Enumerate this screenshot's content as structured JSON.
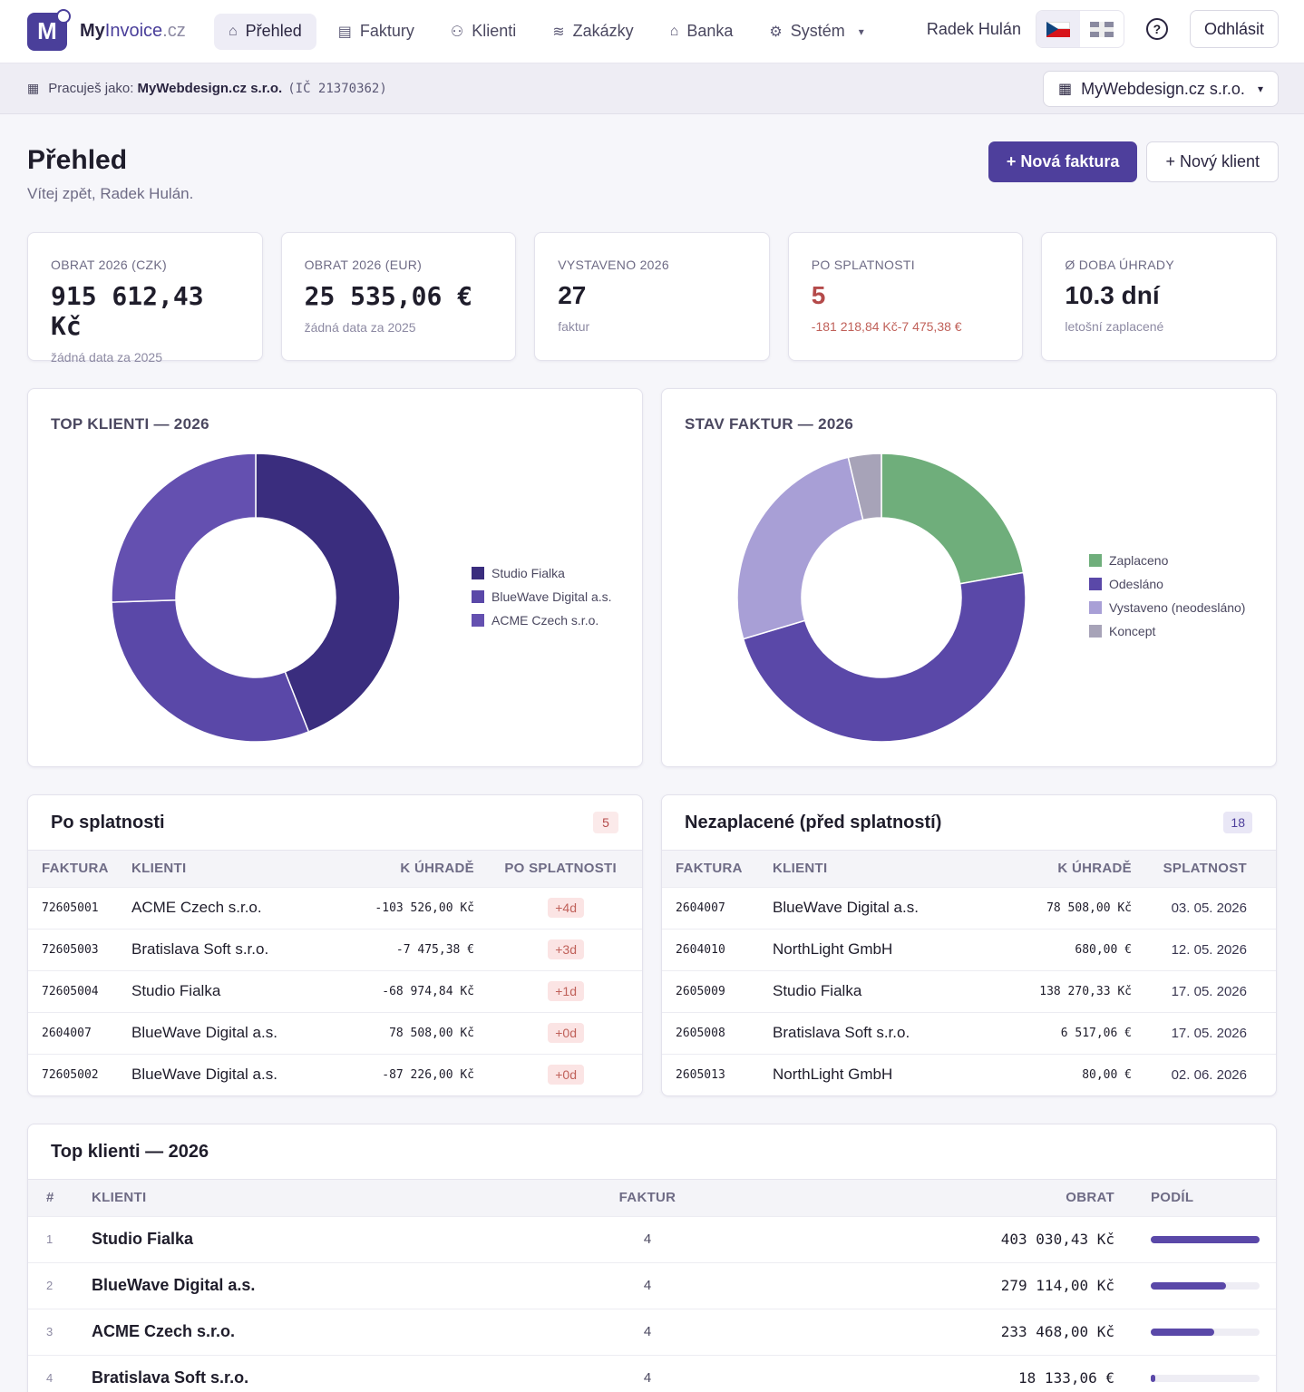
{
  "brand": {
    "prefix": "My",
    "name": "Invoice",
    "suffix": ".cz",
    "logo_letter": "M"
  },
  "nav": {
    "items": [
      {
        "label": "Přehled",
        "icon": "home-icon",
        "active": true
      },
      {
        "label": "Faktury",
        "icon": "document-icon",
        "active": false
      },
      {
        "label": "Klienti",
        "icon": "users-icon",
        "active": false
      },
      {
        "label": "Zakázky",
        "icon": "layers-icon",
        "active": false
      },
      {
        "label": "Banka",
        "icon": "bank-icon",
        "active": false
      },
      {
        "label": "Systém",
        "icon": "gear-icon",
        "active": false
      }
    ],
    "user_name": "Radek Hulán",
    "logout_label": "Odhlásit",
    "help_glyph": "?"
  },
  "context": {
    "prefix": "Pracuješ jako:",
    "company": "MyWebdesign.cz s.r.o.",
    "company_id": "(IČ 21370362)",
    "selector_value": "MyWebdesign.cz s.r.o."
  },
  "page": {
    "title": "Přehled",
    "subtitle": "Vítej zpět, Radek Hulán.",
    "new_invoice_label": "+ Nová faktura",
    "new_client_label": "+ Nový klient"
  },
  "kpis": [
    {
      "label": "OBRAT 2026 (CZK)",
      "value": "915 612,43 Kč",
      "sub": "žádná data za 2025",
      "mono": true,
      "red": false
    },
    {
      "label": "OBRAT 2026 (EUR)",
      "value": "25 535,06 €",
      "sub": "žádná data za 2025",
      "mono": true,
      "red": false
    },
    {
      "label": "VYSTAVENO 2026",
      "value": "27",
      "sub": "faktur",
      "mono": false,
      "red": false
    },
    {
      "label": "PO SPLATNOSTI",
      "value": "5",
      "sub": "-181 218,84 Kč-7 475,38 €",
      "mono": false,
      "red": true
    },
    {
      "label": "Ø DOBA ÚHRADY",
      "value": "10.3 dní",
      "sub": "letošní zaplacené",
      "mono": false,
      "red": false
    }
  ],
  "chart_data": [
    {
      "type": "pie",
      "title": "TOP KLIENTI — 2026",
      "categories": [
        "Studio Fialka",
        "BlueWave Digital a.s.",
        "ACME Czech s.r.o."
      ],
      "values": [
        403030.43,
        279114.0,
        233468.0
      ],
      "colors": [
        "#3a2d7e",
        "#5a48a8",
        "#6450b0"
      ],
      "legend": "right"
    },
    {
      "type": "pie",
      "title": "STAV FAKTUR — 2026",
      "categories": [
        "Zaplaceno",
        "Odesláno",
        "Vystaveno (neodesláno)",
        "Koncept"
      ],
      "values": [
        6,
        13,
        7,
        1
      ],
      "colors": [
        "#6fae7b",
        "#5a48a8",
        "#a89fd6",
        "#a7a3b8"
      ],
      "legend": "right"
    }
  ],
  "overdue": {
    "title": "Po splatnosti",
    "count": "5",
    "columns": [
      "FAKTURA",
      "KLIENTI",
      "K ÚHRADĚ",
      "PO SPLATNOSTI"
    ],
    "rows": [
      {
        "invoice": "72605001",
        "client": "ACME Czech s.r.o.",
        "amount": "-103 526,00 Kč",
        "days": "+4d"
      },
      {
        "invoice": "72605003",
        "client": "Bratislava Soft s.r.o.",
        "amount": "-7 475,38 €",
        "days": "+3d"
      },
      {
        "invoice": "72605004",
        "client": "Studio Fialka",
        "amount": "-68 974,84 Kč",
        "days": "+1d"
      },
      {
        "invoice": "2604007",
        "client": "BlueWave Digital a.s.",
        "amount": "78 508,00 Kč",
        "days": "+0d"
      },
      {
        "invoice": "72605002",
        "client": "BlueWave Digital a.s.",
        "amount": "-87 226,00 Kč",
        "days": "+0d"
      }
    ]
  },
  "unpaid": {
    "title": "Nezaplacené (před splatností)",
    "count": "18",
    "columns": [
      "FAKTURA",
      "KLIENTI",
      "K ÚHRADĚ",
      "SPLATNOST"
    ],
    "rows": [
      {
        "invoice": "2604007",
        "client": "BlueWave Digital a.s.",
        "amount": "78 508,00 Kč",
        "due": "03. 05. 2026"
      },
      {
        "invoice": "2604010",
        "client": "NorthLight GmbH",
        "amount": "680,00 €",
        "due": "12. 05. 2026"
      },
      {
        "invoice": "2605009",
        "client": "Studio Fialka",
        "amount": "138 270,33 Kč",
        "due": "17. 05. 2026"
      },
      {
        "invoice": "2605008",
        "client": "Bratislava Soft s.r.o.",
        "amount": "6 517,06 €",
        "due": "17. 05. 2026"
      },
      {
        "invoice": "2605013",
        "client": "NorthLight GmbH",
        "amount": "80,00 €",
        "due": "02. 06. 2026"
      }
    ]
  },
  "top_clients": {
    "title": "Top klienti — 2026",
    "columns": [
      "#",
      "KLIENTI",
      "FAKTUR",
      "OBRAT",
      "PODÍL"
    ],
    "rows": [
      {
        "rank": "1",
        "client": "Studio Fialka",
        "invoices": "4",
        "turnover": "403 030,43 Kč",
        "share": 1.0
      },
      {
        "rank": "2",
        "client": "BlueWave Digital a.s.",
        "invoices": "4",
        "turnover": "279 114,00 Kč",
        "share": 0.69
      },
      {
        "rank": "3",
        "client": "ACME Czech s.r.o.",
        "invoices": "4",
        "turnover": "233 468,00 Kč",
        "share": 0.58
      },
      {
        "rank": "4",
        "client": "Bratislava Soft s.r.o.",
        "invoices": "4",
        "turnover": "18 133,06 €",
        "share": 0.04
      }
    ]
  }
}
